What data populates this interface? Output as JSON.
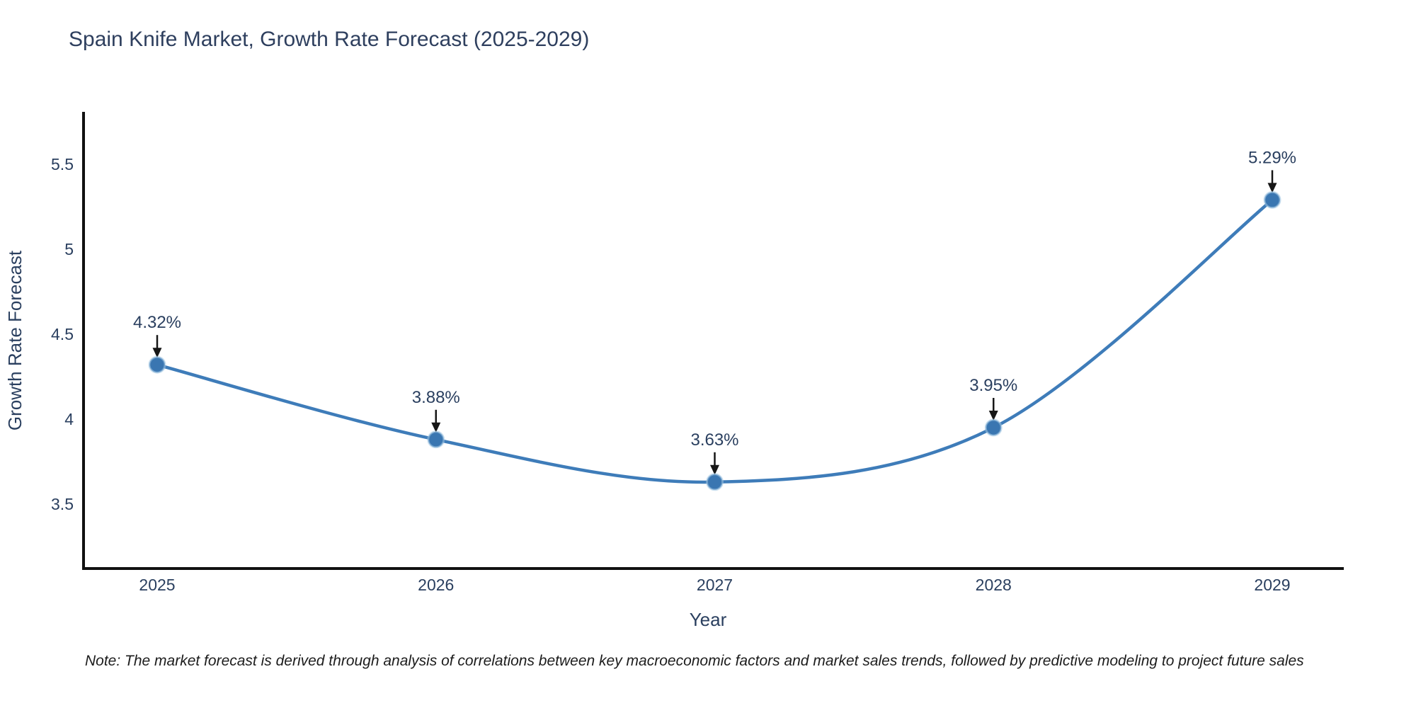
{
  "title": "Spain Knife Market, Growth Rate Forecast (2025-2029)",
  "note": "Note: The market forecast is derived through analysis of correlations between key macroeconomic factors and market sales trends, followed by predictive modeling to project future sales",
  "chart_data": {
    "type": "line",
    "title": "Spain Knife Market, Growth Rate Forecast (2025-2029)",
    "xlabel": "Year",
    "ylabel": "Growth Rate Forecast",
    "categories": [
      "2025",
      "2026",
      "2027",
      "2028",
      "2029"
    ],
    "series": [
      {
        "name": "Growth Rate Forecast",
        "values": [
          4.32,
          3.88,
          3.63,
          3.95,
          5.29
        ]
      }
    ],
    "point_labels": [
      "4.32%",
      "3.88%",
      "3.63%",
      "3.95%",
      "5.29%"
    ],
    "yticks": [
      3.5,
      4,
      4.5,
      5,
      5.5
    ],
    "ylim": [
      3.12,
      5.81
    ],
    "grid": false,
    "legend_position": "none",
    "line_style": "spline",
    "colors": {
      "line": "#3e7cb9",
      "marker": "#3a76b1",
      "marker_halo": "#9ec4e2",
      "annotation_arrow": "#161616",
      "axis": "#111111",
      "text": "#2a3f5f"
    }
  }
}
